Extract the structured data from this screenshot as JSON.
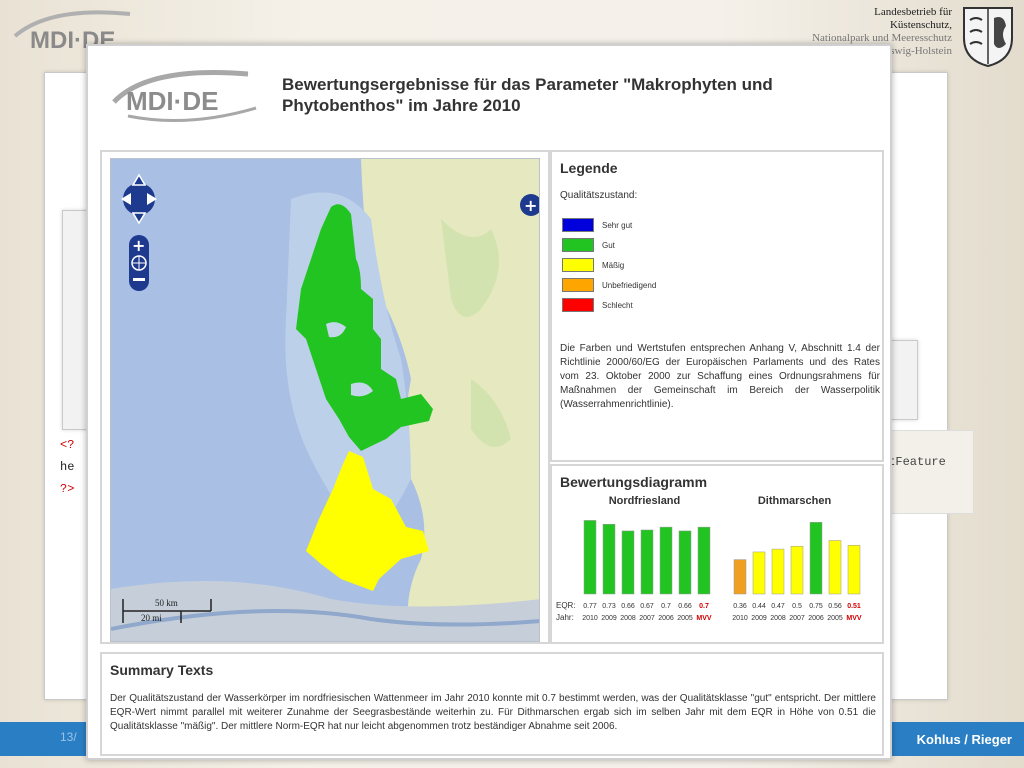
{
  "background": {
    "agency_lines": [
      "Landesbetrieb für",
      "Küstenschutz,",
      "Nationalpark und Meeresschutz",
      "Schleswig-Holstein"
    ],
    "footer_author": "Kohlus / Rieger",
    "footer_page": "13/",
    "code_left_lines": [
      "<?",
      "he",
      "?>"
    ],
    "code_right_text": "etFeature"
  },
  "popup": {
    "logo_text": "MDI·DE",
    "title": "Bewertungsergebnisse für das Parameter \"Makrophyten und Phytobenthos\" im Jahre 2010"
  },
  "map": {
    "scale_km": "50 km",
    "scale_mi": "20 mi",
    "controls": [
      "pan-up",
      "pan-left",
      "pan-right",
      "pan-down",
      "zoom-in",
      "zoom-world",
      "zoom-out",
      "layer-switcher"
    ]
  },
  "legend": {
    "title": "Legende",
    "subtitle": "Qualitätszustand:",
    "items": [
      {
        "label": "Sehr gut",
        "color": "#0000dd"
      },
      {
        "label": "Gut",
        "color": "#22c422"
      },
      {
        "label": "Mäßig",
        "color": "#ffff00"
      },
      {
        "label": "Unbefriedigend",
        "color": "#ffa500"
      },
      {
        "label": "Schlecht",
        "color": "#ff0000"
      }
    ],
    "text": "Die Farben und Wertstufen entsprechen Anhang V, Abschnitt 1.4 der Richtlinie 2000/60/EG der Europäischen Parlaments und des Rates vom 23. Oktober 2000 zur Schaffung eines Ordnungsrahmens für Maßnahmen der Gemeinschaft im Bereich der Wasserpolitik (Wasserrahmenrichtlinie)."
  },
  "diagram": {
    "title": "Bewertungsdiagramm",
    "row_eqr_label": "EQR:",
    "row_year_label": "Jahr:"
  },
  "chart_data": {
    "type": "bar",
    "groups": [
      {
        "name": "Nordfriesland",
        "categories": [
          "2010",
          "2009",
          "2008",
          "2007",
          "2006",
          "2005",
          "MVV"
        ],
        "values": [
          0.77,
          0.73,
          0.66,
          0.67,
          0.7,
          0.66,
          0.7
        ],
        "colors": [
          "#22c422",
          "#22c422",
          "#22c422",
          "#22c422",
          "#22c422",
          "#22c422",
          "#22c422"
        ]
      },
      {
        "name": "Dithmarschen",
        "categories": [
          "2010",
          "2009",
          "2008",
          "2007",
          "2006",
          "2005",
          "MVV"
        ],
        "values": [
          0.36,
          0.44,
          0.47,
          0.5,
          0.75,
          0.56,
          0.51
        ],
        "colors": [
          "#f0a020",
          "#ffff00",
          "#ffff00",
          "#ffff00",
          "#22c422",
          "#ffff00",
          "#ffff00"
        ]
      }
    ],
    "ylim": [
      0,
      0.9
    ],
    "highlight_color": "#d00000"
  },
  "summary": {
    "title": "Summary Texts",
    "text": "Der Qualitätszustand der Wasserkörper im nordfriesischen Wattenmeer im Jahr 2010 konnte mit 0.7 bestimmt werden, was der Qualitätsklasse \"gut\" entspricht. Der mittlere EQR-Wert nimmt parallel mit weiterer Zunahme der Seegrasbestände weiterhin zu. Für Dithmarschen ergab sich im selben Jahr mit dem EQR in Höhe von 0.51 die Qualitätsklasse \"mäßig\". Der mittlere Norm-EQR hat nur leicht abgenommen trotz beständiger Abnahme seit 2006."
  }
}
